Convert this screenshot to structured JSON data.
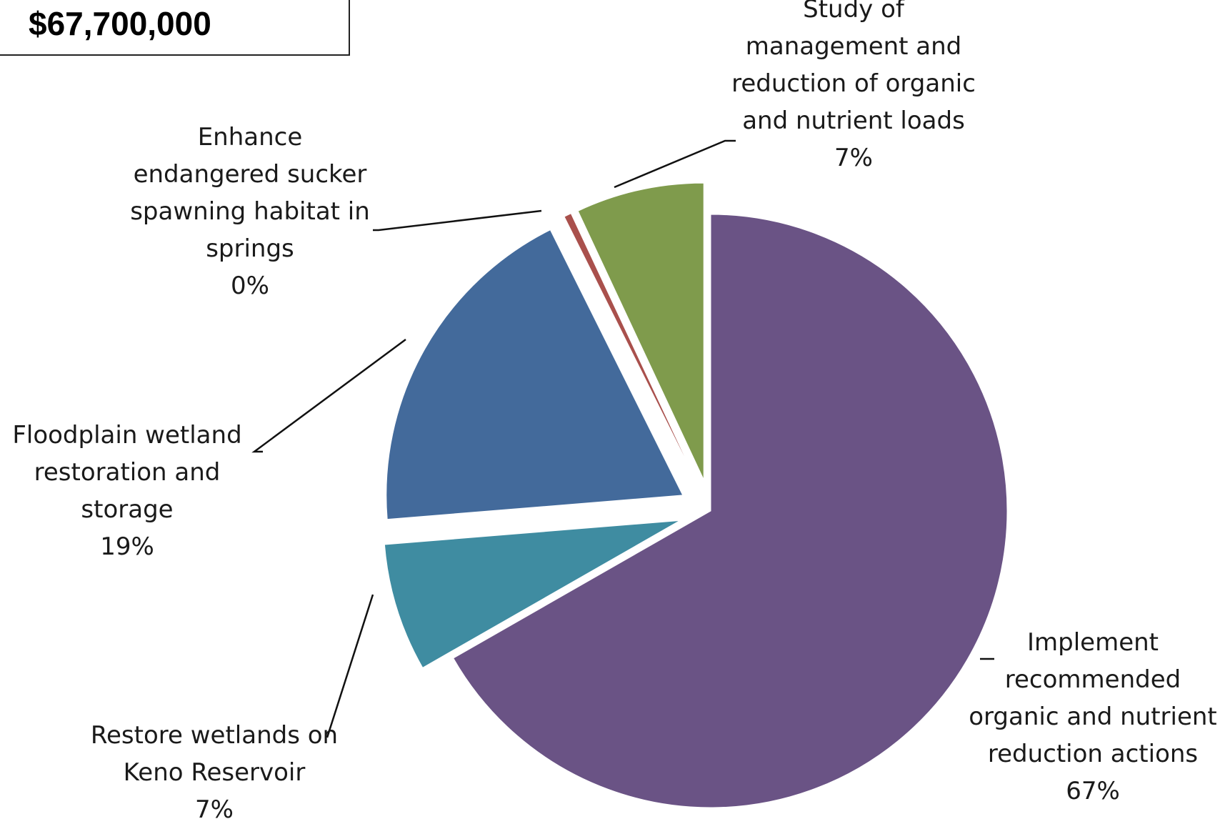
{
  "total_amount": "$67,700,000",
  "chart_data": {
    "type": "pie",
    "title": "",
    "slices": [
      {
        "label_lines": [
          "Implement",
          "recommended",
          "organic and nutrient",
          "reduction actions"
        ],
        "percent_label": "67%",
        "value": 67,
        "color": "#6a5385",
        "exploded": false
      },
      {
        "label_lines": [
          "Restore wetlands on",
          "Keno Reservoir"
        ],
        "percent_label": "7%",
        "value": 7,
        "color": "#3f8ca1",
        "exploded": true
      },
      {
        "label_lines": [
          "Floodplain wetland",
          "restoration and",
          "storage"
        ],
        "percent_label": "19%",
        "value": 19,
        "color": "#436a9b",
        "exploded": true
      },
      {
        "label_lines": [
          "Enhance",
          "endangered sucker",
          "spawning habitat in",
          "springs"
        ],
        "percent_label": "0%",
        "value": 0.4,
        "color": "#a9504c",
        "exploded": true
      },
      {
        "label_lines": [
          "Study of",
          "management and",
          "reduction of organic",
          "and nutrient loads"
        ],
        "percent_label": "7%",
        "value": 7,
        "color": "#7f9b4c",
        "exploded": true
      }
    ]
  }
}
